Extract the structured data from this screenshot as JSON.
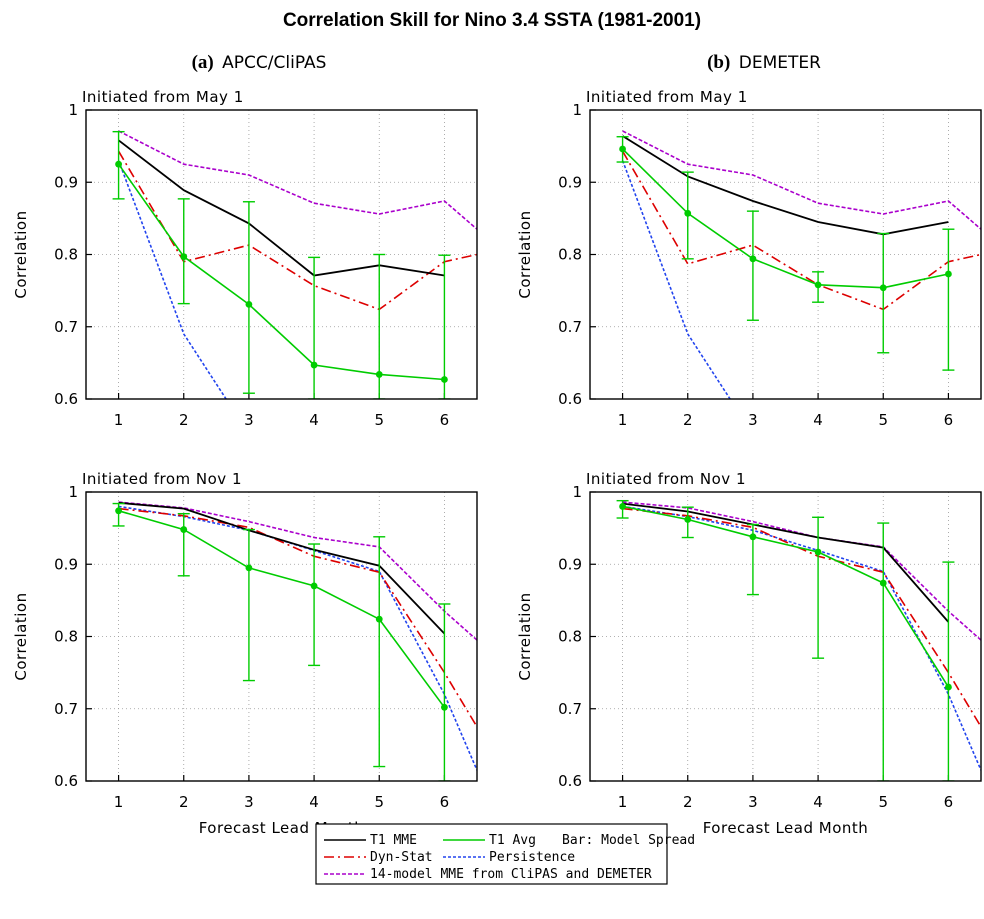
{
  "chart_data": {
    "title": "Correlation Skill for Nino 3.4 SSTA (1981-2001)",
    "type": "line",
    "columns": [
      {
        "label": "(a)",
        "name": "APCC/CliPAS"
      },
      {
        "label": "(b)",
        "name": "DEMETER"
      }
    ],
    "legend": [
      {
        "key": "t1mme",
        "label": "T1 MME",
        "color": "#000000",
        "dash": "solid"
      },
      {
        "key": "t1avg",
        "label": "T1 Avg",
        "color": "#00cc00",
        "dash": "solid"
      },
      {
        "key": "spread",
        "label": "Bar: Model Spread"
      },
      {
        "key": "dynstat",
        "label": "Dyn-Stat",
        "color": "#dd0000",
        "dash": "dashdot"
      },
      {
        "key": "persist",
        "label": "Persistence",
        "color": "#2244ee",
        "dash": "dotted"
      },
      {
        "key": "mme14",
        "label": "14-model MME from CliPAS and DEMETER",
        "color": "#aa00cc",
        "dash": "dashed"
      }
    ],
    "panels": [
      {
        "column": 0,
        "row": 0,
        "subtitle": "Initiated from May 1",
        "xlabel": "",
        "ylabel": "Correlation",
        "xlim": [
          0.5,
          6.5
        ],
        "ylim": [
          0.6,
          1.0
        ],
        "xticks": [
          1,
          2,
          3,
          4,
          5,
          6
        ],
        "yticks": [
          0.6,
          0.7,
          0.8,
          0.9,
          1.0
        ],
        "grid": true,
        "series": {
          "t1mme": {
            "x": [
              1,
              2,
              3,
              4,
              5,
              6
            ],
            "y": [
              0.958,
              0.889,
              0.843,
              0.771,
              0.785,
              0.771
            ]
          },
          "t1avg": {
            "x": [
              1,
              2,
              3,
              4,
              5,
              6
            ],
            "y": [
              0.925,
              0.797,
              0.731,
              0.647,
              0.634,
              0.627
            ]
          },
          "dynstat": {
            "x": [
              1,
              2,
              3,
              4,
              5,
              6,
              6.5
            ],
            "y": [
              0.943,
              0.79,
              0.813,
              0.757,
              0.724,
              0.79,
              0.8
            ]
          },
          "persist": {
            "x": [
              1,
              2,
              2.65
            ],
            "y": [
              0.93,
              0.69,
              0.6
            ]
          },
          "mme14": {
            "x": [
              1,
              2,
              3,
              4,
              5,
              6,
              6.5
            ],
            "y": [
              0.971,
              0.925,
              0.91,
              0.871,
              0.856,
              0.874,
              0.835
            ]
          }
        },
        "errorbars": {
          "x": [
            1,
            2,
            3,
            4,
            5,
            6
          ],
          "low": [
            0.877,
            0.732,
            0.608,
            0.6,
            0.6,
            0.6
          ],
          "high": [
            0.97,
            0.877,
            0.873,
            0.796,
            0.8,
            0.799
          ]
        }
      },
      {
        "column": 1,
        "row": 0,
        "subtitle": "Initiated from May 1",
        "xlabel": "",
        "ylabel": "Correlation",
        "xlim": [
          0.5,
          6.5
        ],
        "ylim": [
          0.6,
          1.0
        ],
        "xticks": [
          1,
          2,
          3,
          4,
          5,
          6
        ],
        "yticks": [
          0.6,
          0.7,
          0.8,
          0.9,
          1.0
        ],
        "grid": true,
        "series": {
          "t1mme": {
            "x": [
              1,
              2,
              3,
              4,
              5,
              6
            ],
            "y": [
              0.964,
              0.908,
              0.874,
              0.845,
              0.828,
              0.845
            ]
          },
          "t1avg": {
            "x": [
              1,
              2,
              3,
              4,
              5,
              6
            ],
            "y": [
              0.946,
              0.857,
              0.794,
              0.758,
              0.754,
              0.773
            ]
          },
          "dynstat": {
            "x": [
              1,
              2,
              3,
              4,
              5,
              6,
              6.5
            ],
            "y": [
              0.943,
              0.787,
              0.813,
              0.758,
              0.724,
              0.79,
              0.8
            ]
          },
          "persist": {
            "x": [
              1,
              2,
              2.65
            ],
            "y": [
              0.93,
              0.69,
              0.6
            ]
          },
          "mme14": {
            "x": [
              1,
              2,
              3,
              4,
              5,
              6,
              6.5
            ],
            "y": [
              0.971,
              0.925,
              0.91,
              0.871,
              0.856,
              0.874,
              0.835
            ]
          }
        },
        "errorbars": {
          "x": [
            1,
            2,
            3,
            4,
            5,
            6
          ],
          "low": [
            0.928,
            0.794,
            0.709,
            0.734,
            0.664,
            0.64
          ],
          "high": [
            0.963,
            0.914,
            0.86,
            0.776,
            0.829,
            0.835
          ]
        }
      },
      {
        "column": 0,
        "row": 1,
        "subtitle": "Initiated from Nov 1",
        "xlabel": "Forecast Lead Month",
        "ylabel": "Correlation",
        "xlim": [
          0.5,
          6.5
        ],
        "ylim": [
          0.6,
          1.0
        ],
        "xticks": [
          1,
          2,
          3,
          4,
          5,
          6
        ],
        "yticks": [
          0.6,
          0.7,
          0.8,
          0.9,
          1.0
        ],
        "grid": true,
        "series": {
          "t1mme": {
            "x": [
              1,
              2,
              3,
              4,
              5,
              6
            ],
            "y": [
              0.985,
              0.977,
              0.947,
              0.92,
              0.898,
              0.804
            ]
          },
          "t1avg": {
            "x": [
              1,
              2,
              3,
              4,
              5,
              6
            ],
            "y": [
              0.974,
              0.948,
              0.895,
              0.87,
              0.824,
              0.702
            ]
          },
          "dynstat": {
            "x": [
              1,
              2,
              3,
              4,
              5,
              6,
              6.5
            ],
            "y": [
              0.977,
              0.967,
              0.951,
              0.911,
              0.889,
              0.75,
              0.675
            ]
          },
          "persist": {
            "x": [
              1,
              2,
              3,
              4,
              5,
              6,
              6.5
            ],
            "y": [
              0.98,
              0.966,
              0.947,
              0.919,
              0.89,
              0.72,
              0.615
            ]
          },
          "mme14": {
            "x": [
              1,
              2,
              3,
              4,
              5,
              6,
              6.5
            ],
            "y": [
              0.986,
              0.978,
              0.959,
              0.937,
              0.924,
              0.835,
              0.795
            ]
          }
        },
        "errorbars": {
          "x": [
            1,
            2,
            3,
            4,
            5,
            6
          ],
          "low": [
            0.953,
            0.884,
            0.739,
            0.76,
            0.62,
            0.6
          ],
          "high": [
            0.984,
            0.97,
            0.948,
            0.928,
            0.938,
            0.845
          ]
        }
      },
      {
        "column": 1,
        "row": 1,
        "subtitle": "Initiated from Nov 1",
        "xlabel": "Forecast Lead Month",
        "ylabel": "Correlation",
        "xlim": [
          0.5,
          6.5
        ],
        "ylim": [
          0.6,
          1.0
        ],
        "xticks": [
          1,
          2,
          3,
          4,
          5,
          6
        ],
        "yticks": [
          0.6,
          0.7,
          0.8,
          0.9,
          1.0
        ],
        "grid": true,
        "series": {
          "t1mme": {
            "x": [
              1,
              2,
              3,
              4,
              5,
              6
            ],
            "y": [
              0.984,
              0.973,
              0.955,
              0.937,
              0.923,
              0.82
            ]
          },
          "t1avg": {
            "x": [
              1,
              2,
              3,
              4,
              5,
              6
            ],
            "y": [
              0.98,
              0.962,
              0.938,
              0.917,
              0.874,
              0.73
            ]
          },
          "dynstat": {
            "x": [
              1,
              2,
              3,
              4,
              5,
              6,
              6.5
            ],
            "y": [
              0.977,
              0.967,
              0.951,
              0.911,
              0.889,
              0.75,
              0.675
            ]
          },
          "persist": {
            "x": [
              1,
              2,
              3,
              4,
              5,
              6,
              6.5
            ],
            "y": [
              0.98,
              0.966,
              0.947,
              0.919,
              0.89,
              0.72,
              0.615
            ]
          },
          "mme14": {
            "x": [
              1,
              2,
              3,
              4,
              5,
              6,
              6.5
            ],
            "y": [
              0.986,
              0.978,
              0.959,
              0.937,
              0.924,
              0.835,
              0.795
            ]
          }
        },
        "errorbars": {
          "x": [
            1,
            2,
            3,
            4,
            5,
            6
          ],
          "low": [
            0.964,
            0.937,
            0.858,
            0.77,
            0.6,
            0.6
          ],
          "high": [
            0.988,
            0.979,
            0.955,
            0.965,
            0.957,
            0.903
          ]
        }
      }
    ]
  }
}
